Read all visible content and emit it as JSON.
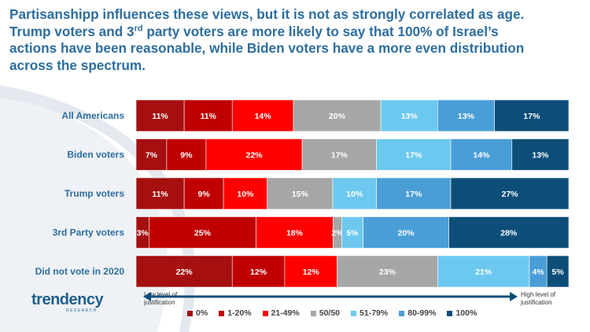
{
  "title": {
    "line1": "Partisanshipp influences these views, but it is not as strongly correlated as age.",
    "line2_a": "Trump voters and 3",
    "line2_sup": "rd",
    "line2_b": " party voters are more likely to say that 100% of Israel’s",
    "line3": "actions have been reasonable, while Biden voters have a more even distribution",
    "line4": "across the spectrum."
  },
  "logo": {
    "name": "trendency",
    "sub": "RESEARCH"
  },
  "scale": {
    "low": "Low level of justification",
    "high": "High level of justification"
  },
  "chart_data": {
    "type": "bar",
    "stacked": true,
    "orientation": "horizontal",
    "categories": [
      "All Americans",
      "Biden voters",
      "Trump voters",
      "3rd Party voters",
      "Did not vote in 2020"
    ],
    "series": [
      {
        "name": "0%",
        "color": "#a50f0f",
        "values": [
          11,
          7,
          11,
          3,
          22
        ]
      },
      {
        "name": "1-20%",
        "color": "#c00000",
        "values": [
          11,
          9,
          9,
          25,
          12
        ]
      },
      {
        "name": "21-49%",
        "color": "#ff0000",
        "values": [
          14,
          22,
          10,
          18,
          12
        ]
      },
      {
        "name": "50/50",
        "color": "#a6a6a6",
        "values": [
          20,
          17,
          15,
          2,
          23
        ]
      },
      {
        "name": "51-79%",
        "color": "#6cc8ee",
        "values": [
          13,
          17,
          10,
          5,
          21
        ]
      },
      {
        "name": "80-99%",
        "color": "#4a9ed6",
        "values": [
          13,
          14,
          17,
          20,
          4
        ]
      },
      {
        "name": "100%",
        "color": "#0d4e79",
        "values": [
          17,
          13,
          27,
          28,
          5
        ]
      }
    ],
    "value_suffix": "%",
    "legend": "bottom"
  }
}
